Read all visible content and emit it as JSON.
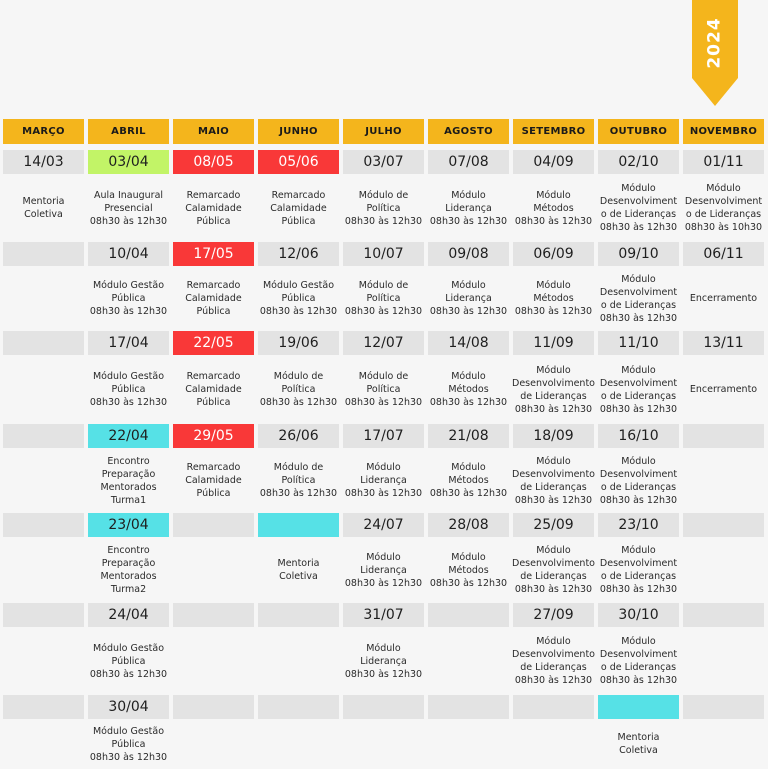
{
  "year": "2024",
  "months": [
    "MARÇO",
    "ABRIL",
    "MAIO",
    "JUNHO",
    "JULHO",
    "AGOSTO",
    "SETEMBRO",
    "OUTUBRO",
    "NOVEMBRO"
  ],
  "status_colors": {
    "green": "#c2f467",
    "red": "#f93838",
    "cyan": "#56e1e6",
    "header": "#f4b51c",
    "empty": "#e3e3e3"
  },
  "rows": [
    [
      {
        "date": "14/03",
        "color": "",
        "text": [
          "Mentoria",
          "Coletiva"
        ]
      },
      {
        "date": "03/04",
        "color": "green",
        "text": [
          "Aula Inaugural",
          "Presencial",
          "08h30 às 12h30"
        ]
      },
      {
        "date": "08/05",
        "color": "red",
        "text": [
          "Remarcado",
          "Calamidade",
          "Pública"
        ]
      },
      {
        "date": "05/06",
        "color": "red",
        "text": [
          "Remarcado",
          "Calamidade",
          "Pública"
        ]
      },
      {
        "date": "03/07",
        "color": "",
        "text": [
          "Módulo de",
          "Política",
          "08h30 às 12h30"
        ]
      },
      {
        "date": "07/08",
        "color": "",
        "text": [
          "Módulo",
          "Liderança",
          "08h30 às 12h30"
        ]
      },
      {
        "date": "04/09",
        "color": "",
        "text": [
          "Módulo",
          "Métodos",
          "08h30 às 12h30"
        ]
      },
      {
        "date": "02/10",
        "color": "",
        "text": [
          "Módulo",
          "Desenvolviment",
          "o de Lideranças",
          "08h30 às 12h30"
        ]
      },
      {
        "date": "01/11",
        "color": "",
        "text": [
          "Módulo",
          "Desenvolviment",
          "o de Lideranças",
          "08h30 às 10h30"
        ]
      }
    ],
    [
      {
        "date": "",
        "color": "",
        "text": []
      },
      {
        "date": "10/04",
        "color": "",
        "text": [
          "Módulo Gestão",
          "Pública",
          "08h30 às 12h30"
        ]
      },
      {
        "date": "17/05",
        "color": "red",
        "text": [
          "Remarcado",
          "Calamidade",
          "Pública"
        ]
      },
      {
        "date": "12/06",
        "color": "",
        "text": [
          "Módulo Gestão",
          "Pública",
          "08h30 às 12h30"
        ]
      },
      {
        "date": "10/07",
        "color": "",
        "text": [
          "Módulo de",
          "Política",
          "08h30 às 12h30"
        ]
      },
      {
        "date": "09/08",
        "color": "",
        "text": [
          "Módulo",
          "Liderança",
          "08h30 às 12h30"
        ]
      },
      {
        "date": "06/09",
        "color": "",
        "text": [
          "Módulo",
          "Métodos",
          "08h30 às 12h30"
        ]
      },
      {
        "date": "09/10",
        "color": "",
        "text": [
          "Módulo",
          "Desenvolviment",
          "o de Lideranças",
          "08h30 às 12h30"
        ]
      },
      {
        "date": "06/11",
        "color": "",
        "text": [
          "Encerramento"
        ]
      }
    ],
    [
      {
        "date": "",
        "color": "",
        "text": []
      },
      {
        "date": "17/04",
        "color": "",
        "text": [
          "Módulo Gestão",
          "Pública",
          "08h30 às 12h30"
        ]
      },
      {
        "date": "22/05",
        "color": "red",
        "text": [
          "Remarcado",
          "Calamidade",
          "Pública"
        ]
      },
      {
        "date": "19/06",
        "color": "",
        "text": [
          "Módulo de",
          "Política",
          "08h30 às 12h30"
        ]
      },
      {
        "date": "12/07",
        "color": "",
        "text": [
          "Módulo de",
          "Política",
          "08h30 às 12h30"
        ]
      },
      {
        "date": "14/08",
        "color": "",
        "text": [
          "Módulo",
          "Métodos",
          "08h30 às 12h30"
        ]
      },
      {
        "date": "11/09",
        "color": "",
        "text": [
          "Módulo",
          "Desenvolvimento",
          "de Lideranças",
          "08h30 às 12h30"
        ]
      },
      {
        "date": "11/10",
        "color": "",
        "text": [
          "Módulo",
          "Desenvolviment",
          "o de Lideranças",
          "08h30 às 12h30"
        ]
      },
      {
        "date": "13/11",
        "color": "",
        "text": [
          "Encerramento"
        ]
      }
    ],
    [
      {
        "date": "",
        "color": "",
        "text": []
      },
      {
        "date": "22/04",
        "color": "cyan",
        "text": [
          "Encontro",
          "Preparação",
          "Mentorados",
          "Turma1"
        ]
      },
      {
        "date": "29/05",
        "color": "red",
        "text": [
          "Remarcado",
          "Calamidade",
          "Pública"
        ]
      },
      {
        "date": "26/06",
        "color": "",
        "text": [
          "Módulo de",
          "Política",
          "08h30 às 12h30"
        ]
      },
      {
        "date": "17/07",
        "color": "",
        "text": [
          "Módulo",
          "Liderança",
          "08h30 às 12h30"
        ]
      },
      {
        "date": "21/08",
        "color": "",
        "text": [
          "Módulo",
          "Métodos",
          "08h30 às 12h30"
        ]
      },
      {
        "date": "18/09",
        "color": "",
        "text": [
          "Módulo",
          "Desenvolvimento",
          "de Lideranças",
          "08h30 às 12h30"
        ]
      },
      {
        "date": "16/10",
        "color": "",
        "text": [
          "Módulo",
          "Desenvolviment",
          "o de Lideranças",
          "08h30 às 12h30"
        ]
      },
      {
        "date": "",
        "color": "",
        "text": []
      }
    ],
    [
      {
        "date": "",
        "color": "",
        "text": []
      },
      {
        "date": "23/04",
        "color": "cyan",
        "text": [
          "Encontro",
          "Preparação",
          "Mentorados",
          "Turma2"
        ]
      },
      {
        "date": "",
        "color": "",
        "text": []
      },
      {
        "date": "",
        "color": "cyan",
        "text": [
          "Mentoria",
          "Coletiva"
        ]
      },
      {
        "date": "24/07",
        "color": "",
        "text": [
          "Módulo",
          "Liderança",
          "08h30 às 12h30"
        ]
      },
      {
        "date": "28/08",
        "color": "",
        "text": [
          "Módulo",
          "Métodos",
          "08h30 às 12h30"
        ]
      },
      {
        "date": "25/09",
        "color": "",
        "text": [
          "Módulo",
          "Desenvolvimento",
          "de Lideranças",
          "08h30 às 12h30"
        ]
      },
      {
        "date": "23/10",
        "color": "",
        "text": [
          "Módulo",
          "Desenvolviment",
          "o de Lideranças",
          "08h30 às 12h30"
        ]
      },
      {
        "date": "",
        "color": "",
        "text": []
      }
    ],
    [
      {
        "date": "",
        "color": "",
        "text": []
      },
      {
        "date": "24/04",
        "color": "",
        "text": [
          "Módulo Gestão",
          "Pública",
          "08h30 às 12h30"
        ]
      },
      {
        "date": "",
        "color": "",
        "text": []
      },
      {
        "date": "",
        "color": "",
        "text": []
      },
      {
        "date": "31/07",
        "color": "",
        "text": [
          "Módulo",
          "Liderança",
          "08h30 às 12h30"
        ]
      },
      {
        "date": "",
        "color": "",
        "text": []
      },
      {
        "date": "27/09",
        "color": "",
        "text": [
          "Módulo",
          "Desenvolvimento",
          "de Lideranças",
          "08h30 às 12h30"
        ]
      },
      {
        "date": "30/10",
        "color": "",
        "text": [
          "Módulo",
          "Desenvolviment",
          "o de Lideranças",
          "08h30 às 12h30"
        ]
      },
      {
        "date": "",
        "color": "",
        "text": []
      }
    ],
    [
      {
        "date": "",
        "color": "",
        "text": []
      },
      {
        "date": "30/04",
        "color": "",
        "text": [
          "Módulo Gestão",
          "Pública",
          "08h30 às 12h30"
        ]
      },
      {
        "date": "",
        "color": "",
        "text": []
      },
      {
        "date": "",
        "color": "",
        "text": []
      },
      {
        "date": "",
        "color": "",
        "text": []
      },
      {
        "date": "",
        "color": "",
        "text": []
      },
      {
        "date": "",
        "color": "",
        "text": []
      },
      {
        "date": "",
        "color": "cyan",
        "text": [
          "Mentoria",
          "Coletiva"
        ]
      },
      {
        "date": "",
        "color": "",
        "text": []
      }
    ]
  ]
}
